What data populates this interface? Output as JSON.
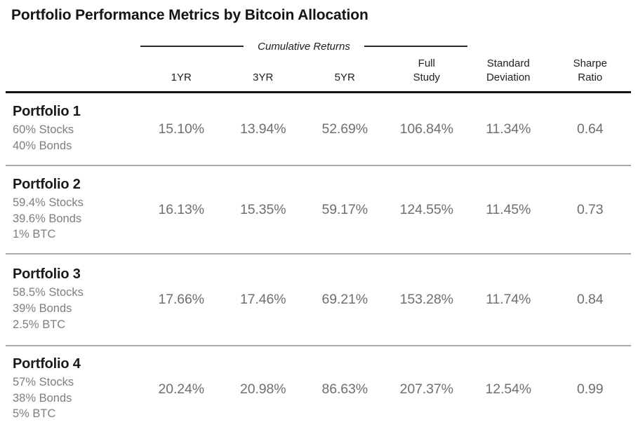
{
  "title": "Portfolio Performance Metrics by Bitcoin Allocation",
  "chart_data": {
    "type": "table",
    "title": "Portfolio Performance Metrics by Bitcoin Allocation",
    "group_header": "Cumulative Returns",
    "group_header_spans_columns": [
      "1YR",
      "3YR",
      "5YR",
      "Full Study"
    ],
    "columns": [
      "1YR",
      "3YR",
      "5YR",
      "Full Study",
      "Standard Deviation",
      "Sharpe Ratio"
    ],
    "columns_display": [
      "1YR",
      "3YR",
      "5YR",
      "Full\nStudy",
      "Standard\nDeviation",
      "Sharpe\nRatio"
    ],
    "rows": [
      {
        "name": "Portfolio 1",
        "allocation": [
          "60% Stocks",
          "40% Bonds"
        ],
        "values": [
          "15.10%",
          "13.94%",
          "52.69%",
          "106.84%",
          "11.34%",
          "0.64"
        ]
      },
      {
        "name": "Portfolio 2",
        "allocation": [
          "59.4% Stocks",
          "39.6% Bonds",
          "1% BTC"
        ],
        "values": [
          "16.13%",
          "15.35%",
          "59.17%",
          "124.55%",
          "11.45%",
          "0.73"
        ]
      },
      {
        "name": "Portfolio 3",
        "allocation": [
          "58.5% Stocks",
          "39% Bonds",
          "2.5% BTC"
        ],
        "values": [
          "17.66%",
          "17.46%",
          "69.21%",
          "153.28%",
          "11.74%",
          "0.84"
        ]
      },
      {
        "name": "Portfolio 4",
        "allocation": [
          "57% Stocks",
          "38% Bonds",
          "5% BTC"
        ],
        "values": [
          "20.24%",
          "20.98%",
          "86.63%",
          "207.37%",
          "12.54%",
          "0.99"
        ]
      }
    ]
  },
  "colors": {
    "title_text": "#141414",
    "header_text": "#1f1f1f",
    "portfolio_name_text": "#1a1a1a",
    "allocation_text": "#7e7e7e",
    "value_text": "#6f6f6f",
    "heavy_rule": "#141414",
    "light_rule": "#a9a9a9",
    "background": "#ffffff"
  }
}
